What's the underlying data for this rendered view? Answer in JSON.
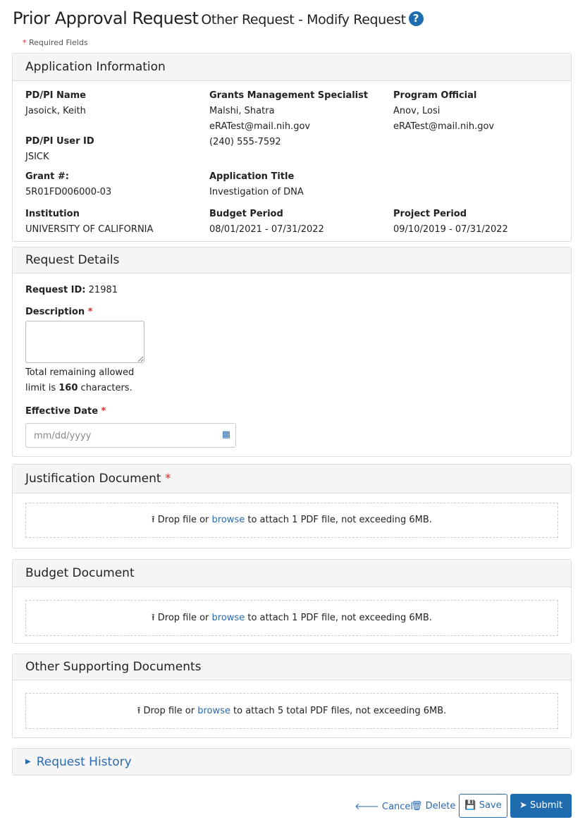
{
  "header": {
    "title": "Prior Approval Request",
    "subtitle": "Other Request - Modify Request",
    "help_icon": "question-circle-icon",
    "required_note": "Required Fields"
  },
  "app_info": {
    "heading": "Application Information",
    "pdpi_label": "PD/PI Name",
    "pdpi": "Jasoick, Keith",
    "gms_label": "Grants Management Specialist",
    "gms_name": "Malshi, Shatra",
    "gms_email": "eRATest@mail.nih.gov",
    "gms_phone": "(240) 555-7592",
    "po_label": "Program Official",
    "po_name": "Anov, Losi",
    "po_email": "eRATest@mail.nih.gov",
    "userid_label": "PD/PI User ID",
    "userid": "JSICK",
    "grant_label": "Grant #:",
    "grant": "5R01FD006000-03",
    "apptitle_label": "Application Title",
    "apptitle": "Investigation of DNA",
    "inst_label": "Institution",
    "inst": "UNIVERSITY OF CALIFORNIA",
    "budget_label": "Budget Period",
    "budget": "08/01/2021 - 07/31/2022",
    "project_label": "Project Period",
    "project": "09/10/2019 - 07/31/2022"
  },
  "request": {
    "heading": "Request Details",
    "id_label": "Request ID:",
    "id": "21981",
    "desc_label": "Description",
    "desc_value": "",
    "remaining_1": "Total remaining allowed",
    "remaining_2": "limit is",
    "remaining_count": "160",
    "remaining_3": "characters.",
    "date_label": "Effective Date",
    "date_placeholder": "mm/dd/yyyy"
  },
  "docs": [
    {
      "heading": "Justification Document",
      "pre": "Drop file or",
      "link": "browse",
      "post": "to attach 1 PDF file, not exceeding 6MB."
    },
    {
      "heading": "Budget Document",
      "pre": "Drop file or",
      "link": "browse",
      "post": "to attach 1 PDF file, not exceeding 6MB."
    },
    {
      "heading": "Other Supporting Documents",
      "pre": "Drop file or",
      "link": "browse",
      "post": "to attach 5 total PDF files, not exceeding 6MB."
    }
  ],
  "history": {
    "label": "Request History"
  },
  "actions": {
    "cancel": "Cancel",
    "delete": "Delete",
    "save": "Save",
    "submit": "Submit"
  },
  "colors": {
    "primary": "#1f6bb0",
    "required": "#d32f2f"
  }
}
